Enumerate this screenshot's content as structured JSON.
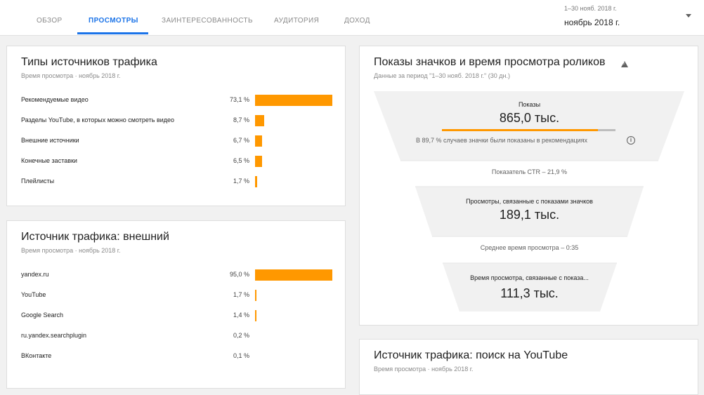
{
  "tabs": [
    {
      "label": "ОБЗОР"
    },
    {
      "label": "ПРОСМОТРЫ"
    },
    {
      "label": "ЗАИНТЕРЕСОВАННОСТЬ"
    },
    {
      "label": "АУДИТОРИЯ"
    },
    {
      "label": "ДОХОД"
    }
  ],
  "active_tab": "ПРОСМОТРЫ",
  "date_picker": {
    "range": "1–30 нояб. 2018 г.",
    "value": "ноябрь 2018 г."
  },
  "traffic_types": {
    "title": "Типы источников трафика",
    "subtitle": "Время просмотра · ноябрь 2018 г.",
    "rows": [
      {
        "label": "Рекомендуемые видео",
        "value": "73,1 %",
        "percent": 73.1
      },
      {
        "label": "Разделы YouTube, в которых можно смотреть видео",
        "value": "8,7 %",
        "percent": 8.7
      },
      {
        "label": "Внешние источники",
        "value": "6,7 %",
        "percent": 6.7
      },
      {
        "label": "Конечные заставки",
        "value": "6,5 %",
        "percent": 6.5
      },
      {
        "label": "Плейлисты",
        "value": "1,7 %",
        "percent": 1.7
      }
    ]
  },
  "external": {
    "title": "Источник трафика: внешний",
    "subtitle": "Время просмотра · ноябрь 2018 г.",
    "rows": [
      {
        "label": "yandex.ru",
        "value": "95,0 %",
        "percent": 95.0
      },
      {
        "label": "YouTube",
        "value": "1,7 %",
        "percent": 1.7
      },
      {
        "label": "Google Search",
        "value": "1,4 %",
        "percent": 1.4
      },
      {
        "label": "ru.yandex.searchplugin",
        "value": "0,2 %",
        "percent": 0.2
      },
      {
        "label": "ВКонтакте",
        "value": "0,1 %",
        "percent": 0.1
      }
    ]
  },
  "funnel": {
    "title": "Показы значков и время просмотра роликов",
    "subtitle": "Данные за период \"1–30 нояб. 2018 г.\" (30 дн.)",
    "impressions_label": "Показы",
    "impressions_value": "865,0 тыс.",
    "recommend_share": 89.7,
    "recommend_note": "В 89,7 % случаев значки были показаны в рекомендациях",
    "ctr": "Показатель CTR – 21,9 %",
    "views_label": "Просмотры, связанные с показами значков",
    "views_value": "189,1 тыс.",
    "avg_duration": "Среднее время просмотра – 0:35",
    "watch_label": "Время просмотра, связанные с показа...",
    "watch_value": "111,3 тыс."
  },
  "youtube_search": {
    "title": "Источник трафика: поиск на YouTube",
    "subtitle": "Время просмотра · ноябрь 2018 г."
  },
  "colors": {
    "accent": "#1a73e8",
    "bar": "#ff9800"
  }
}
